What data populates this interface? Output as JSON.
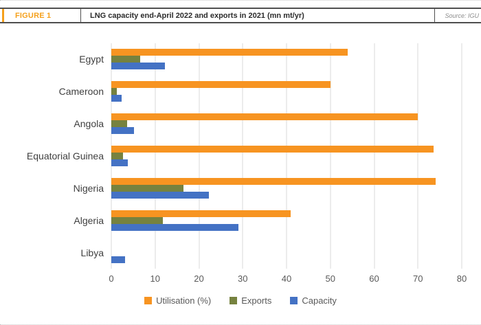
{
  "figure": {
    "label": "FIGURE 1",
    "title": "LNG capacity end-April 2022 and exports in 2021 (mn mt/yr)",
    "source": "Source: IGU"
  },
  "colors": {
    "accent_orange": "#F5A01B",
    "utilisation_orange": "#F79421",
    "exports_green": "#76823F",
    "capacity_blue": "#4472C4",
    "gridline_gray": "#D8D8D8"
  },
  "chart_data": {
    "type": "bar",
    "orientation": "horizontal",
    "title": "LNG capacity end-April 2022 and exports in 2021 (mn mt/yr)",
    "categories": [
      "Egypt",
      "Cameroon",
      "Angola",
      "Equatorial Guinea",
      "Nigeria",
      "Algeria",
      "Libya"
    ],
    "series": [
      {
        "name": "Utilisation (%)",
        "color": "#F79421",
        "values": [
          54,
          50,
          70,
          73.5,
          74,
          41,
          0
        ]
      },
      {
        "name": "Exports",
        "color": "#76823F",
        "values": [
          6.6,
          1.2,
          3.6,
          2.7,
          16.4,
          11.8,
          0
        ]
      },
      {
        "name": "Capacity",
        "color": "#4472C4",
        "values": [
          12.2,
          2.4,
          5.2,
          3.7,
          22.2,
          29,
          3.2
        ]
      }
    ],
    "xlim": [
      0,
      80
    ],
    "xticks": [
      "0",
      "10",
      "20",
      "30",
      "40",
      "50",
      "60",
      "70",
      "80"
    ],
    "grid": "vertical-only",
    "legend_position": "bottom-center"
  }
}
